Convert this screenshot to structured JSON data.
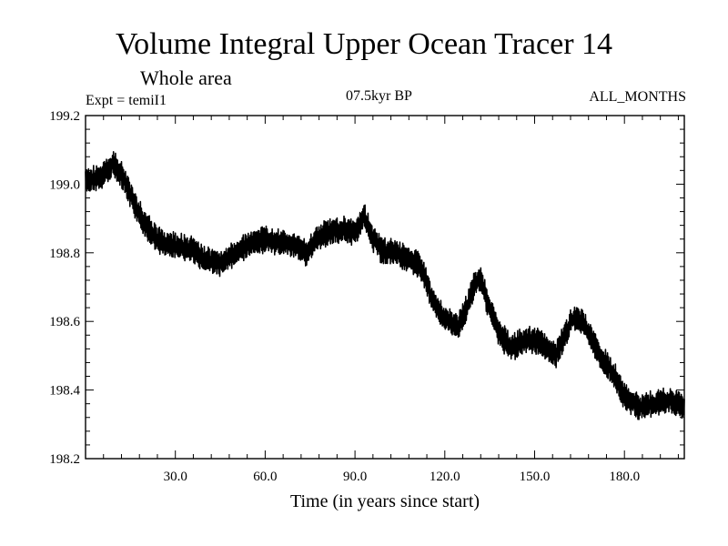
{
  "chart_data": {
    "type": "line",
    "title": "Volume Integral Upper Ocean Tracer 14",
    "subtitle": "Whole area",
    "experiment": "Expt = temiI1",
    "period": "07.5kyr BP",
    "months": "ALL_MONTHS",
    "xlabel": "Time (in years since start)",
    "ylabel": "",
    "xlim": [
      0,
      200
    ],
    "ylim": [
      198.2,
      199.2
    ],
    "x_ticks": [
      30,
      60,
      90,
      120,
      150,
      180
    ],
    "x_tick_labels": [
      "30.0",
      "60.0",
      "90.0",
      "120.0",
      "150.0",
      "180.0"
    ],
    "y_ticks": [
      198.2,
      198.4,
      198.6,
      198.8,
      199.0,
      199.2
    ],
    "y_tick_labels": [
      "198.2",
      "198.4",
      "198.6",
      "198.8",
      "199.0",
      "199.2"
    ],
    "grid": false,
    "series": [
      {
        "name": "Volume Integral Upper Ocean Tracer 14",
        "trend_x": [
          0,
          5,
          9,
          12,
          16,
          20,
          25,
          30,
          35,
          40,
          45,
          50,
          55,
          60,
          65,
          70,
          74,
          78,
          82,
          86,
          90,
          93,
          96,
          100,
          104,
          108,
          112,
          116,
          120,
          124,
          127,
          130,
          132,
          135,
          138,
          142,
          147,
          152,
          157,
          160,
          163,
          166,
          169,
          172,
          176,
          180,
          185,
          190,
          195,
          200
        ],
        "trend_y": [
          199.01,
          199.02,
          199.06,
          199.03,
          198.95,
          198.88,
          198.83,
          198.82,
          198.81,
          198.78,
          198.77,
          198.8,
          198.83,
          198.84,
          198.83,
          198.82,
          198.8,
          198.85,
          198.86,
          198.87,
          198.86,
          198.91,
          198.84,
          198.8,
          198.8,
          198.78,
          198.76,
          198.66,
          198.61,
          198.58,
          198.63,
          198.71,
          198.72,
          198.64,
          198.57,
          198.52,
          198.55,
          198.54,
          198.5,
          198.56,
          198.61,
          198.6,
          198.55,
          198.5,
          198.45,
          198.38,
          198.35,
          198.36,
          198.37,
          198.35
        ],
        "oscillation_amplitude": 0.038,
        "samples_per_year": 6
      }
    ]
  }
}
